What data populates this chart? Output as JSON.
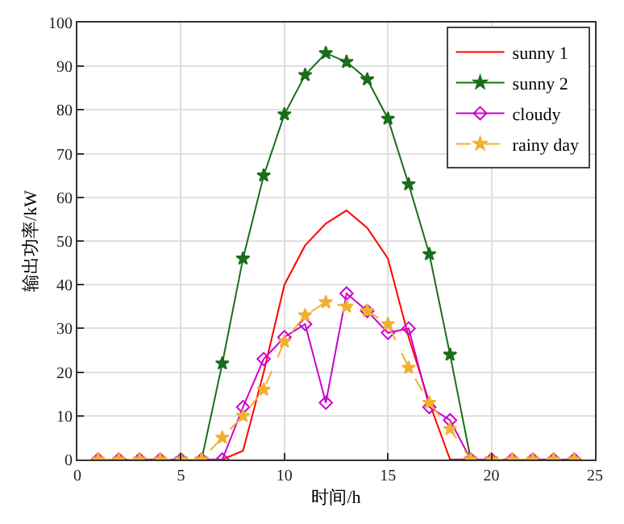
{
  "chart_data": {
    "type": "line",
    "xlabel": "时间/h",
    "ylabel": "输出功率/kW",
    "x": [
      1,
      2,
      3,
      4,
      5,
      6,
      7,
      8,
      9,
      10,
      11,
      12,
      13,
      14,
      15,
      16,
      17,
      18,
      19,
      20,
      21,
      22,
      23,
      24
    ],
    "xlim": [
      0,
      25
    ],
    "xticks": [
      0,
      5,
      10,
      15,
      20,
      25
    ],
    "ylim": [
      0,
      100
    ],
    "yticks": [
      0,
      10,
      20,
      30,
      40,
      50,
      60,
      70,
      80,
      90,
      100
    ],
    "grid": true,
    "legend": "top right",
    "series": [
      {
        "name": "sunny 1",
        "color": "#ff0000",
        "marker": "none",
        "line_style": "solid",
        "values": [
          0,
          0,
          0,
          0,
          0,
          0,
          0,
          2,
          20,
          40,
          49,
          54,
          57,
          53,
          46,
          28,
          13,
          0,
          0,
          0,
          null,
          null,
          null,
          null
        ]
      },
      {
        "name": "sunny 2",
        "color": "#1a6e1a",
        "marker": "star",
        "line_style": "solid",
        "values": [
          null,
          null,
          null,
          null,
          0,
          0,
          22,
          46,
          65,
          79,
          88,
          93,
          91,
          87,
          78,
          63,
          47,
          24,
          0,
          0,
          null,
          null,
          null,
          null
        ]
      },
      {
        "name": "cloudy",
        "color": "#cc00cc",
        "marker": "diamond",
        "line_style": "solid",
        "values": [
          0,
          0,
          0,
          0,
          0,
          0,
          0,
          12,
          23,
          28,
          31,
          13,
          38,
          34,
          29,
          30,
          12,
          9,
          0,
          0,
          0,
          0,
          0,
          0
        ]
      },
      {
        "name": "rainy day",
        "color": "#f0b030",
        "marker": "star",
        "line_style": "dashed",
        "values": [
          0,
          0,
          0,
          0,
          0,
          0,
          5,
          10,
          16,
          27,
          33,
          36,
          35,
          34,
          31,
          21,
          13,
          7,
          0,
          0,
          0,
          0,
          0,
          0
        ]
      }
    ]
  }
}
